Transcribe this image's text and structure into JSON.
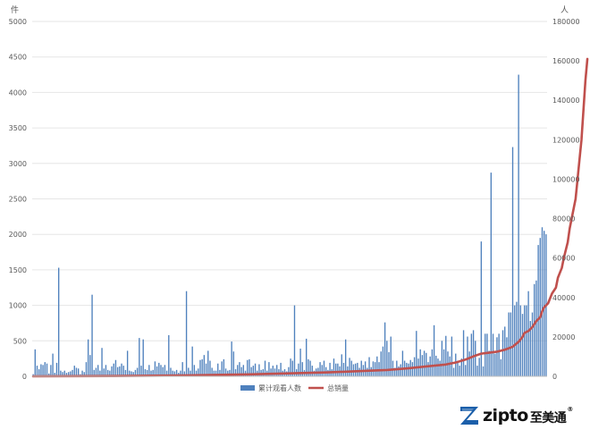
{
  "chart_data": {
    "type": "bar+line",
    "title": "",
    "left_unit_label": "件",
    "right_unit_label": "人",
    "y_left": {
      "min": 0,
      "max": 5000,
      "ticks": [
        0,
        500,
        1000,
        1500,
        2000,
        2500,
        3000,
        3500,
        4000,
        4500,
        5000
      ]
    },
    "y_right": {
      "min": 0,
      "max": 180000,
      "ticks": [
        0,
        20000,
        40000,
        60000,
        80000,
        100000,
        120000,
        140000,
        160000,
        180000
      ]
    },
    "grid": true,
    "legend_position": "bottom",
    "series": [
      {
        "name": "累计观看人数",
        "type": "bar",
        "axis": "left",
        "color": "#4f81bd",
        "values": [
          30,
          380,
          150,
          100,
          170,
          160,
          200,
          180,
          40,
          160,
          320,
          50,
          190,
          1530,
          80,
          60,
          80,
          50,
          60,
          70,
          90,
          150,
          120,
          110,
          30,
          80,
          60,
          200,
          520,
          300,
          1150,
          90,
          120,
          160,
          80,
          400,
          110,
          160,
          90,
          80,
          140,
          180,
          230,
          130,
          140,
          180,
          150,
          90,
          360,
          80,
          70,
          60,
          90,
          120,
          540,
          150,
          520,
          100,
          90,
          160,
          80,
          90,
          210,
          140,
          190,
          160,
          130,
          160,
          80,
          580,
          120,
          80,
          70,
          90,
          50,
          80,
          200,
          70,
          1200,
          120,
          80,
          420,
          160,
          80,
          110,
          230,
          240,
          300,
          180,
          360,
          220,
          120,
          80,
          80,
          180,
          90,
          210,
          240,
          110,
          80,
          90,
          490,
          350,
          100,
          160,
          200,
          130,
          160,
          80,
          230,
          240,
          130,
          150,
          180,
          80,
          170,
          90,
          100,
          220,
          80,
          200,
          110,
          150,
          110,
          160,
          100,
          190,
          80,
          100,
          70,
          130,
          250,
          220,
          1000,
          100,
          180,
          390,
          200,
          90,
          530,
          240,
          220,
          150,
          80,
          110,
          120,
          200,
          160,
          220,
          130,
          90,
          190,
          100,
          250,
          180,
          180,
          140,
          310,
          190,
          520,
          140,
          260,
          220,
          170,
          180,
          190,
          120,
          220,
          160,
          210,
          120,
          270,
          130,
          210,
          200,
          280,
          200,
          350,
          420,
          760,
          500,
          340,
          560,
          220,
          120,
          220,
          140,
          170,
          360,
          220,
          190,
          180,
          230,
          200,
          270,
          640,
          250,
          380,
          300,
          360,
          330,
          200,
          280,
          380,
          720,
          290,
          250,
          220,
          500,
          380,
          570,
          350,
          280,
          560,
          120,
          320,
          220,
          150,
          250,
          650,
          160,
          560,
          350,
          600,
          650,
          500,
          150,
          260,
          1900,
          140,
          600,
          600,
          360,
          2870,
          600,
          320,
          550,
          600,
          240,
          650,
          700,
          550,
          900,
          900,
          3230,
          1000,
          1050,
          4250,
          1000,
          880,
          1000,
          1000,
          1200,
          780,
          900,
          1300,
          1350,
          1850,
          1950,
          2100,
          2050,
          2000
        ]
      },
      {
        "name": "总销量",
        "type": "line",
        "axis": "right",
        "color": "#c0504d",
        "points": [
          [
            0,
            0
          ],
          [
            40,
            150
          ],
          [
            80,
            500
          ],
          [
            110,
            1000
          ],
          [
            130,
            1500
          ],
          [
            150,
            2000
          ],
          [
            170,
            2800
          ],
          [
            180,
            3200
          ],
          [
            190,
            4000
          ],
          [
            200,
            5000
          ],
          [
            210,
            6000
          ],
          [
            215,
            7000
          ],
          [
            220,
            8500
          ],
          [
            225,
            10500
          ],
          [
            228,
            11500
          ],
          [
            232,
            12000
          ],
          [
            236,
            12500
          ],
          [
            240,
            13500
          ],
          [
            244,
            15000
          ],
          [
            247,
            17500
          ],
          [
            249,
            20000
          ],
          [
            250,
            22000
          ],
          [
            252,
            23000
          ],
          [
            254,
            25000
          ],
          [
            256,
            28000
          ],
          [
            258,
            30000
          ],
          [
            259,
            33000
          ],
          [
            260,
            35000
          ],
          [
            262,
            37000
          ],
          [
            264,
            42000
          ],
          [
            266,
            45000
          ],
          [
            267,
            50000
          ],
          [
            269,
            55000
          ],
          [
            270,
            60000
          ],
          [
            272,
            68000
          ],
          [
            273,
            75000
          ],
          [
            274,
            80000
          ],
          [
            275,
            85000
          ],
          [
            276,
            90000
          ],
          [
            277,
            100000
          ],
          [
            278,
            110000
          ],
          [
            279,
            120000
          ],
          [
            280,
            135000
          ],
          [
            281,
            150000
          ],
          [
            282,
            161000
          ]
        ]
      }
    ]
  },
  "brand": {
    "logo_text": "zipto",
    "logo_cn": "至美通",
    "registered_mark": "®",
    "logo_color": "#1b5faa"
  }
}
